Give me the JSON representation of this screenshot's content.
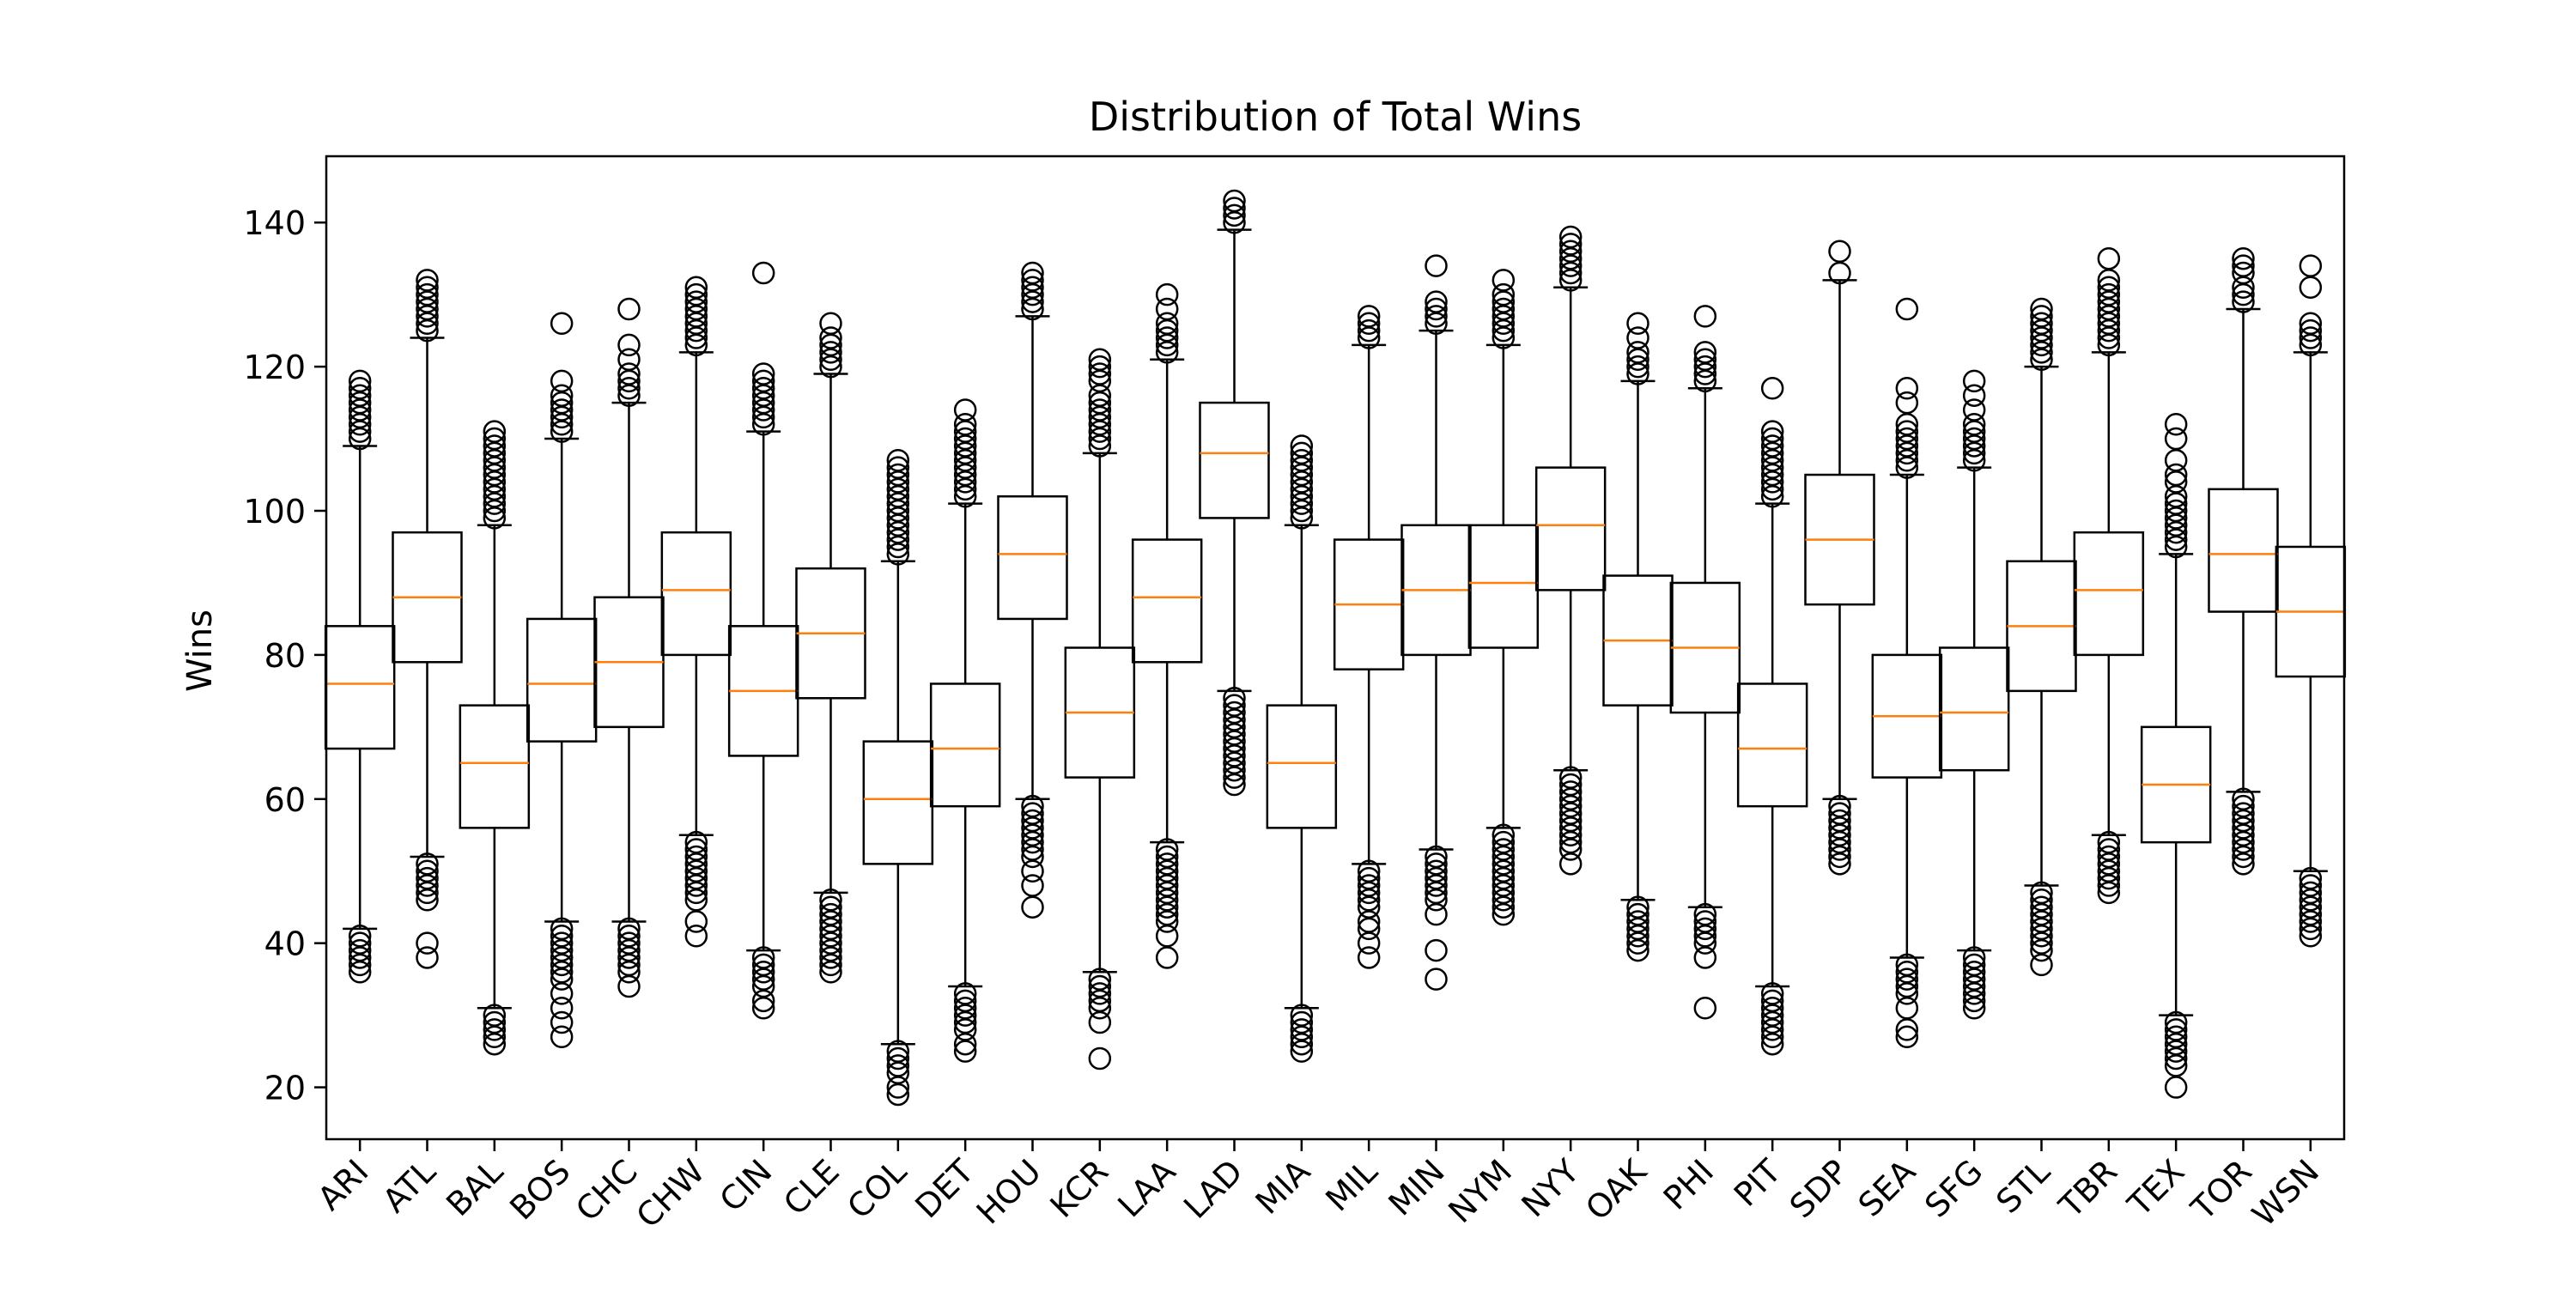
{
  "chart_data": {
    "type": "box",
    "title": "Distribution of Total Wins",
    "xlabel": "",
    "ylabel": "Wins",
    "ylim": [
      12.8,
      149.2
    ],
    "yticks": [
      20,
      40,
      60,
      80,
      100,
      120,
      140
    ],
    "grid": false,
    "legend": "none",
    "colors": {
      "box": "#000000",
      "median": "#ff7f0e",
      "background": "#ffffff"
    },
    "categories": [
      "ARI",
      "ATL",
      "BAL",
      "BOS",
      "CHC",
      "CHW",
      "CIN",
      "CLE",
      "COL",
      "DET",
      "HOU",
      "KCR",
      "LAA",
      "LAD",
      "MIA",
      "MIL",
      "MIN",
      "NYM",
      "NYY",
      "OAK",
      "PHI",
      "PIT",
      "SDP",
      "SEA",
      "SFG",
      "STL",
      "TBR",
      "TEX",
      "TOR",
      "WSN"
    ],
    "boxes": [
      {
        "team": "ARI",
        "whislo": 42,
        "q1": 67,
        "med": 76,
        "q3": 84,
        "whishi": 109,
        "fliers": [
          36,
          37,
          38,
          39,
          40,
          41,
          110,
          111,
          112,
          113,
          114,
          115,
          116,
          117,
          118
        ]
      },
      {
        "team": "ATL",
        "whislo": 52,
        "q1": 79,
        "med": 88,
        "q3": 97,
        "whishi": 124,
        "fliers": [
          38,
          40,
          46,
          47,
          48,
          49,
          50,
          51,
          125,
          126,
          127,
          128,
          129,
          130,
          131,
          132
        ]
      },
      {
        "team": "BAL",
        "whislo": 31,
        "q1": 56,
        "med": 65,
        "q3": 73,
        "whishi": 98,
        "fliers": [
          26,
          27,
          28,
          29,
          30,
          99,
          100,
          101,
          102,
          103,
          104,
          105,
          106,
          107,
          108,
          109,
          110,
          111
        ]
      },
      {
        "team": "BOS",
        "whislo": 43,
        "q1": 68,
        "med": 76,
        "q3": 85,
        "whishi": 110,
        "fliers": [
          27,
          29,
          31,
          33,
          35,
          36,
          37,
          38,
          39,
          40,
          41,
          42,
          111,
          112,
          113,
          114,
          115,
          116,
          118,
          126
        ]
      },
      {
        "team": "CHC",
        "whislo": 43,
        "q1": 70,
        "med": 79,
        "q3": 88,
        "whishi": 115,
        "fliers": [
          34,
          36,
          37,
          38,
          39,
          40,
          41,
          42,
          116,
          117,
          118,
          119,
          121,
          123,
          128
        ]
      },
      {
        "team": "CHW",
        "whislo": 55,
        "q1": 80,
        "med": 89,
        "q3": 97,
        "whishi": 122,
        "fliers": [
          41,
          43,
          46,
          47,
          48,
          49,
          50,
          51,
          52,
          53,
          54,
          123,
          124,
          125,
          126,
          127,
          128,
          129,
          130,
          131
        ]
      },
      {
        "team": "CIN",
        "whislo": 39,
        "q1": 66,
        "med": 75,
        "q3": 84,
        "whishi": 111,
        "fliers": [
          31,
          32,
          34,
          35,
          36,
          37,
          38,
          112,
          113,
          114,
          115,
          116,
          117,
          118,
          119,
          133
        ]
      },
      {
        "team": "CLE",
        "whislo": 47,
        "q1": 74,
        "med": 83,
        "q3": 92,
        "whishi": 119,
        "fliers": [
          36,
          37,
          38,
          39,
          40,
          41,
          42,
          43,
          44,
          45,
          46,
          120,
          121,
          122,
          123,
          124,
          126
        ]
      },
      {
        "team": "COL",
        "whislo": 26,
        "q1": 51,
        "med": 60,
        "q3": 68,
        "whishi": 93,
        "fliers": [
          19,
          20,
          22,
          23,
          24,
          25,
          94,
          95,
          96,
          97,
          98,
          99,
          100,
          101,
          102,
          103,
          104,
          105,
          106,
          107
        ]
      },
      {
        "team": "DET",
        "whislo": 34,
        "q1": 59,
        "med": 67,
        "q3": 76,
        "whishi": 101,
        "fliers": [
          25,
          26,
          28,
          29,
          30,
          31,
          32,
          33,
          102,
          103,
          104,
          105,
          106,
          107,
          108,
          109,
          110,
          111,
          112,
          114
        ]
      },
      {
        "team": "HOU",
        "whislo": 60,
        "q1": 85,
        "med": 94,
        "q3": 102,
        "whishi": 127,
        "fliers": [
          45,
          48,
          50,
          52,
          53,
          54,
          55,
          56,
          57,
          58,
          59,
          128,
          129,
          130,
          131,
          132,
          133
        ]
      },
      {
        "team": "KCR",
        "whislo": 36,
        "q1": 63,
        "med": 72,
        "q3": 81,
        "whishi": 108,
        "fliers": [
          24,
          29,
          31,
          32,
          33,
          34,
          35,
          109,
          110,
          111,
          112,
          113,
          114,
          115,
          116,
          118,
          119,
          120,
          121
        ]
      },
      {
        "team": "LAA",
        "whislo": 54,
        "q1": 79,
        "med": 88,
        "q3": 96,
        "whishi": 121,
        "fliers": [
          38,
          41,
          43,
          44,
          45,
          46,
          47,
          48,
          49,
          50,
          51,
          52,
          53,
          122,
          123,
          124,
          125,
          126,
          128,
          130
        ]
      },
      {
        "team": "LAD",
        "whislo": 75,
        "q1": 99,
        "med": 108,
        "q3": 115,
        "whishi": 139,
        "fliers": [
          62,
          63,
          64,
          65,
          66,
          67,
          68,
          69,
          70,
          71,
          72,
          73,
          74,
          140,
          141,
          142,
          143
        ]
      },
      {
        "team": "MIA",
        "whislo": 31,
        "q1": 56,
        "med": 65,
        "q3": 73,
        "whishi": 98,
        "fliers": [
          25,
          26,
          27,
          28,
          29,
          30,
          99,
          100,
          101,
          102,
          103,
          104,
          105,
          106,
          107,
          108,
          109
        ]
      },
      {
        "team": "MIL",
        "whislo": 51,
        "q1": 78,
        "med": 87,
        "q3": 96,
        "whishi": 123,
        "fliers": [
          38,
          40,
          42,
          43,
          45,
          46,
          47,
          48,
          49,
          50,
          124,
          125,
          126,
          127
        ]
      },
      {
        "team": "MIN",
        "whislo": 53,
        "q1": 80,
        "med": 89,
        "q3": 98,
        "whishi": 125,
        "fliers": [
          35,
          39,
          44,
          46,
          47,
          48,
          49,
          50,
          51,
          52,
          126,
          127,
          128,
          129,
          134
        ]
      },
      {
        "team": "NYM",
        "whislo": 56,
        "q1": 81,
        "med": 90,
        "q3": 98,
        "whishi": 123,
        "fliers": [
          44,
          45,
          46,
          47,
          48,
          49,
          50,
          51,
          52,
          53,
          54,
          55,
          124,
          125,
          126,
          127,
          128,
          129,
          130,
          132
        ]
      },
      {
        "team": "NYY",
        "whislo": 64,
        "q1": 89,
        "med": 98,
        "q3": 106,
        "whishi": 131,
        "fliers": [
          51,
          53,
          54,
          55,
          56,
          57,
          58,
          59,
          60,
          61,
          62,
          63,
          132,
          133,
          134,
          135,
          136,
          137,
          138
        ]
      },
      {
        "team": "OAK",
        "whislo": 46,
        "q1": 73,
        "med": 82,
        "q3": 91,
        "whishi": 118,
        "fliers": [
          39,
          40,
          41,
          42,
          43,
          44,
          45,
          119,
          120,
          121,
          122,
          124,
          126
        ]
      },
      {
        "team": "PHI",
        "whislo": 45,
        "q1": 72,
        "med": 81,
        "q3": 90,
        "whishi": 117,
        "fliers": [
          31,
          38,
          40,
          41,
          42,
          43,
          44,
          118,
          119,
          120,
          121,
          122,
          127
        ]
      },
      {
        "team": "PIT",
        "whislo": 34,
        "q1": 59,
        "med": 67,
        "q3": 76,
        "whishi": 101,
        "fliers": [
          26,
          27,
          28,
          29,
          30,
          31,
          32,
          33,
          102,
          103,
          104,
          105,
          106,
          107,
          108,
          109,
          110,
          111,
          117
        ]
      },
      {
        "team": "SDP",
        "whislo": 60,
        "q1": 87,
        "med": 96,
        "q3": 105,
        "whishi": 132,
        "fliers": [
          51,
          52,
          53,
          54,
          55,
          56,
          57,
          58,
          59,
          133,
          136
        ]
      },
      {
        "team": "SEA",
        "whislo": 38,
        "q1": 63,
        "med": 71.5,
        "q3": 80,
        "whishi": 105,
        "fliers": [
          27,
          28,
          31,
          33,
          34,
          35,
          36,
          37,
          106,
          107,
          108,
          109,
          110,
          111,
          112,
          115,
          117,
          128
        ]
      },
      {
        "team": "SFG",
        "whislo": 39,
        "q1": 64,
        "med": 72,
        "q3": 81,
        "whishi": 106,
        "fliers": [
          31,
          32,
          33,
          34,
          35,
          36,
          37,
          38,
          107,
          108,
          109,
          110,
          111,
          112,
          114,
          116,
          118
        ]
      },
      {
        "team": "STL",
        "whislo": 48,
        "q1": 75,
        "med": 84,
        "q3": 93,
        "whishi": 120,
        "fliers": [
          37,
          39,
          40,
          41,
          42,
          43,
          44,
          45,
          46,
          47,
          121,
          122,
          123,
          124,
          125,
          126,
          127,
          128
        ]
      },
      {
        "team": "TBR",
        "whislo": 55,
        "q1": 80,
        "med": 89,
        "q3": 97,
        "whishi": 122,
        "fliers": [
          47,
          48,
          49,
          50,
          51,
          52,
          53,
          54,
          123,
          124,
          125,
          126,
          127,
          128,
          129,
          130,
          131,
          132,
          135
        ]
      },
      {
        "team": "TEX",
        "whislo": 30,
        "q1": 54,
        "med": 62,
        "q3": 70,
        "whishi": 94,
        "fliers": [
          20,
          23,
          24,
          25,
          26,
          27,
          28,
          29,
          95,
          96,
          97,
          98,
          99,
          100,
          101,
          102,
          104,
          105,
          107,
          110,
          112
        ]
      },
      {
        "team": "TOR",
        "whislo": 61,
        "q1": 86,
        "med": 94,
        "q3": 103,
        "whishi": 128,
        "fliers": [
          51,
          52,
          53,
          54,
          55,
          56,
          57,
          58,
          59,
          60,
          129,
          130,
          131,
          133,
          134,
          135
        ]
      },
      {
        "team": "WSN",
        "whislo": 50,
        "q1": 77,
        "med": 86,
        "q3": 95,
        "whishi": 122,
        "fliers": [
          41,
          42,
          43,
          44,
          45,
          46,
          47,
          48,
          49,
          123,
          124,
          125,
          126,
          131,
          134
        ]
      }
    ]
  }
}
